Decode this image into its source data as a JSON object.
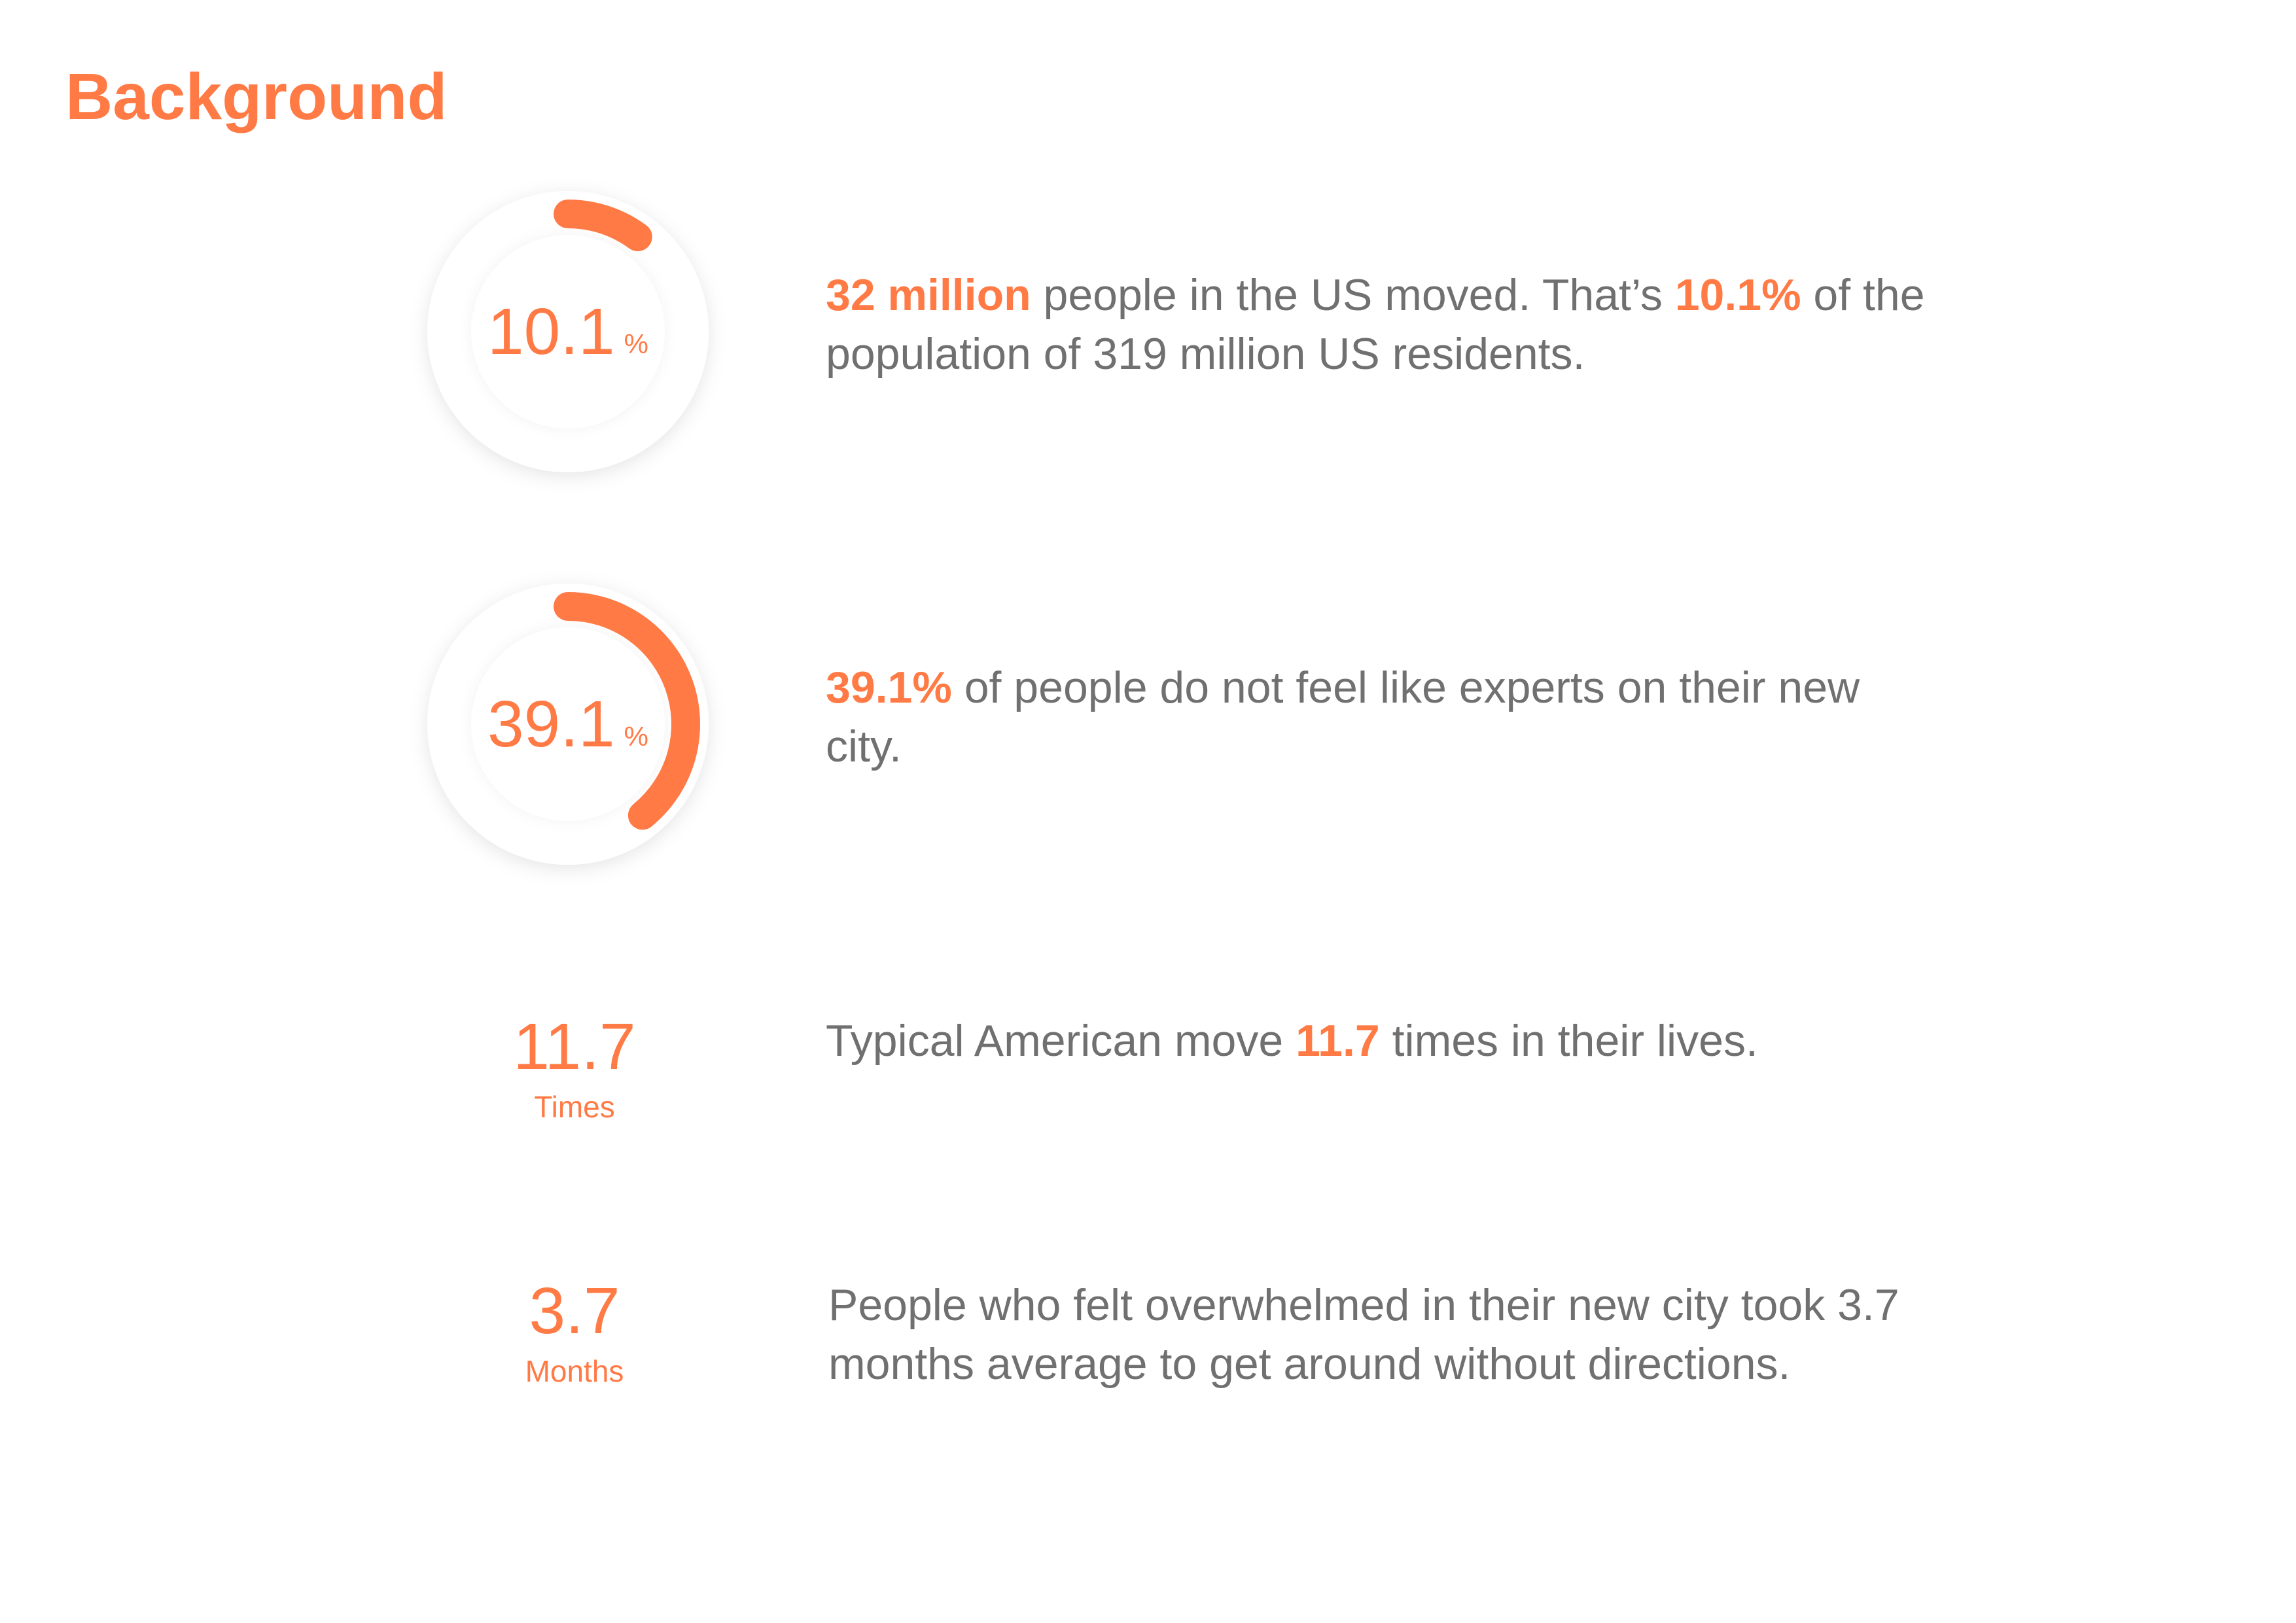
{
  "page": {
    "title": "Background",
    "accent_color": "#FF7A45",
    "text_color": "#707070"
  },
  "stats": [
    {
      "kind": "ring",
      "value": "10.1",
      "unit": "%",
      "percent": 10.1,
      "text": {
        "p1_bold": "32 million",
        "p2": " people in the US moved. That’s ",
        "p3_bold": "10.1%",
        "p4": " of the population of 319 million US residents."
      }
    },
    {
      "kind": "ring",
      "value": "39.1",
      "unit": "%",
      "percent": 39.1,
      "text": {
        "p1_bold": "39.1%",
        "p2": " of people do not feel like experts on their new city."
      }
    },
    {
      "kind": "number",
      "value": "11.7",
      "unit": "Times",
      "text": {
        "p1": "Typical American move ",
        "p2_bold": "11.7",
        "p3": " times in their lives."
      }
    },
    {
      "kind": "number",
      "value": "3.7",
      "unit": "Months",
      "text": {
        "p1": "People who felt overwhelmed in their new city took 3.7 months average to get around without directions."
      }
    }
  ]
}
